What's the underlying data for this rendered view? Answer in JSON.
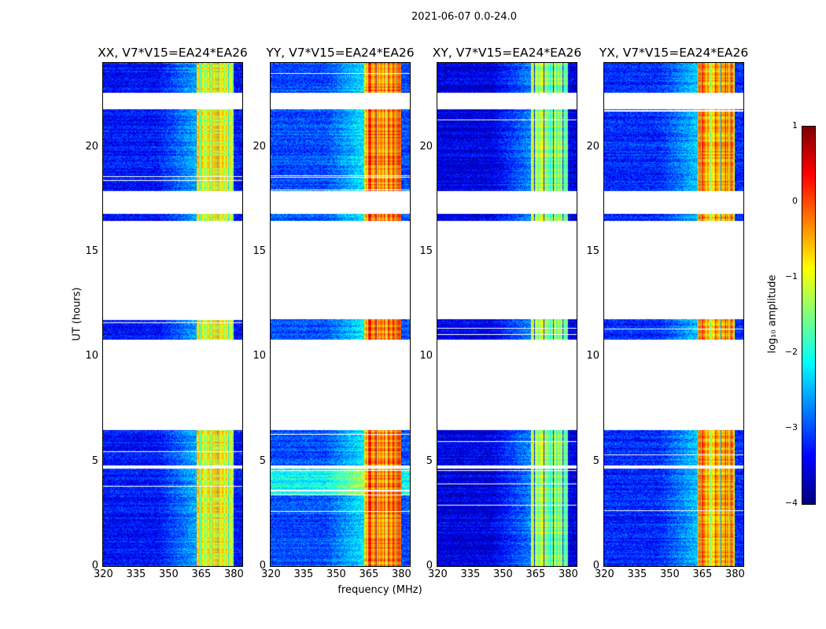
{
  "chart_data": {
    "type": "heatmap",
    "title": "2021-06-07 0.0-24.0",
    "xlabel": "frequency (MHz)",
    "ylabel": "UT (hours)",
    "xlim": [
      320,
      384
    ],
    "ylim": [
      0,
      24
    ],
    "xticks": [
      "320",
      "335",
      "350",
      "365",
      "380"
    ],
    "yticks": [
      "0",
      "5",
      "10",
      "15",
      "20"
    ],
    "panels": [
      {
        "title": "XX, V7*V15=EA24*EA26",
        "band_level": -1.0,
        "bg_level": -3.3
      },
      {
        "title": "YY, V7*V15=EA24*EA26",
        "band_level": -0.2,
        "bg_level": -3.0
      },
      {
        "title": "XY, V7*V15=EA24*EA26",
        "band_level": -1.4,
        "bg_level": -3.5
      },
      {
        "title": "YX, V7*V15=EA24*EA26",
        "band_level": -0.4,
        "bg_level": -3.2
      }
    ],
    "data_segments_hours": [
      [
        0,
        4.65
      ],
      [
        4.8,
        6.5
      ],
      [
        10.8,
        11.8
      ],
      [
        16.5,
        16.8
      ],
      [
        17.9,
        21.8
      ],
      [
        22.6,
        24
      ]
    ],
    "bright_band_mhz": [
      360,
      380
    ],
    "colorbar": {
      "label": "log₁₀ amplitude",
      "range": [
        -4,
        1
      ],
      "ticks": [
        "1",
        "0",
        "−1",
        "−2",
        "−3",
        "−4"
      ],
      "colormap": "jet"
    }
  }
}
